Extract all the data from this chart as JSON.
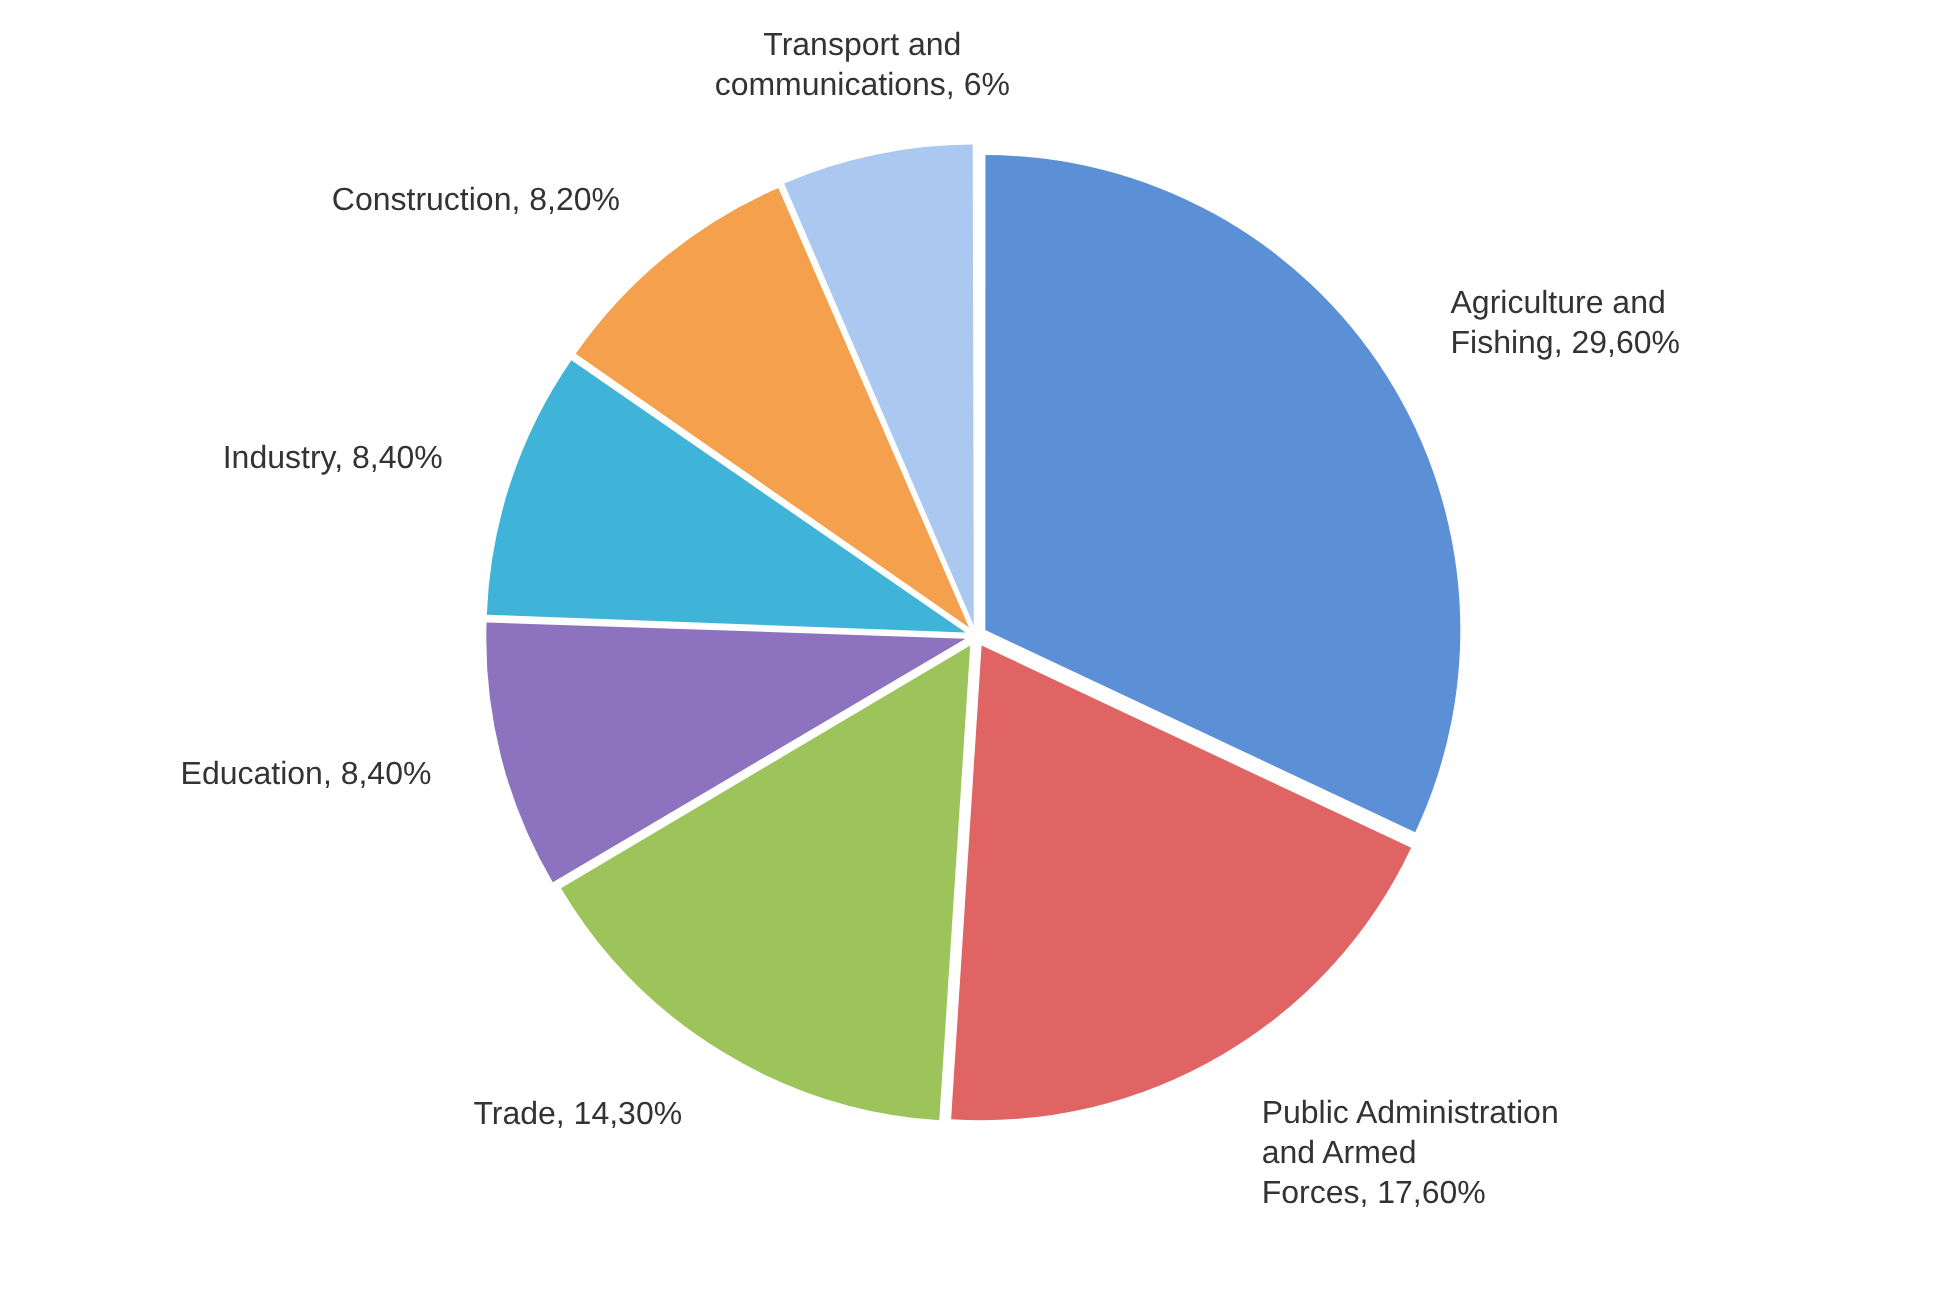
{
  "chart_data": {
    "type": "pie",
    "categories": [
      "Agriculture and Fishing",
      "Public Administration and Armed Forces",
      "Trade",
      "Education",
      "Industry",
      "Construction",
      "Transport and communications"
    ],
    "values": [
      29.6,
      17.6,
      14.3,
      8.4,
      8.4,
      8.2,
      6
    ],
    "value_labels": [
      "29,60%",
      "17,60%",
      "14,30%",
      "8,40%",
      "8,40%",
      "8,20%",
      "6%"
    ],
    "colors": [
      "#5b8fd6",
      "#e06464",
      "#9cc45a",
      "#8c72bf",
      "#40b4d8",
      "#f5a04c",
      "#aac8f0"
    ],
    "legend": false
  }
}
